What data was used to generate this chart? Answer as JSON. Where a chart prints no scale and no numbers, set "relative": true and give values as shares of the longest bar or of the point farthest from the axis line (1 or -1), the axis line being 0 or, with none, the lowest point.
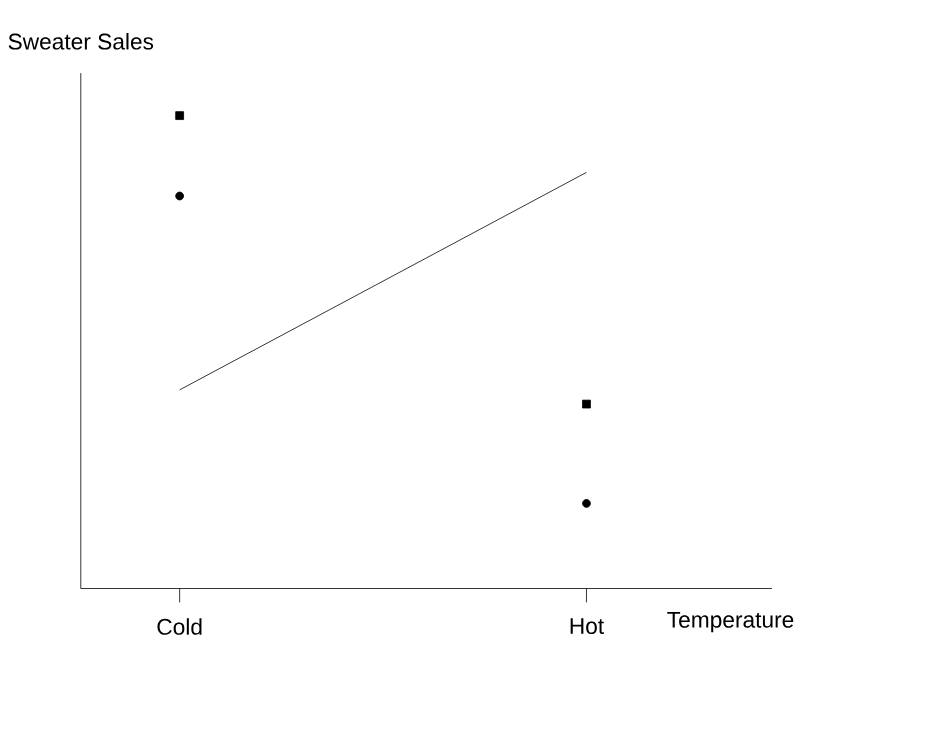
{
  "chart_data": {
    "type": "scatter",
    "relative": true,
    "xlabel": "Temperature",
    "ylabel": "Sweater Sales",
    "categories": [
      "Cold",
      "Hot"
    ],
    "series": [
      {
        "color": "#000000",
        "marker": "square",
        "values": [
          1.0,
          0.39
        ]
      },
      {
        "color": "#000000",
        "marker": "circle",
        "values": [
          0.83,
          0.18
        ]
      },
      {
        "type": "line",
        "color": "#000000",
        "marker": "none",
        "values": [
          0.42,
          0.88
        ]
      }
    ]
  }
}
